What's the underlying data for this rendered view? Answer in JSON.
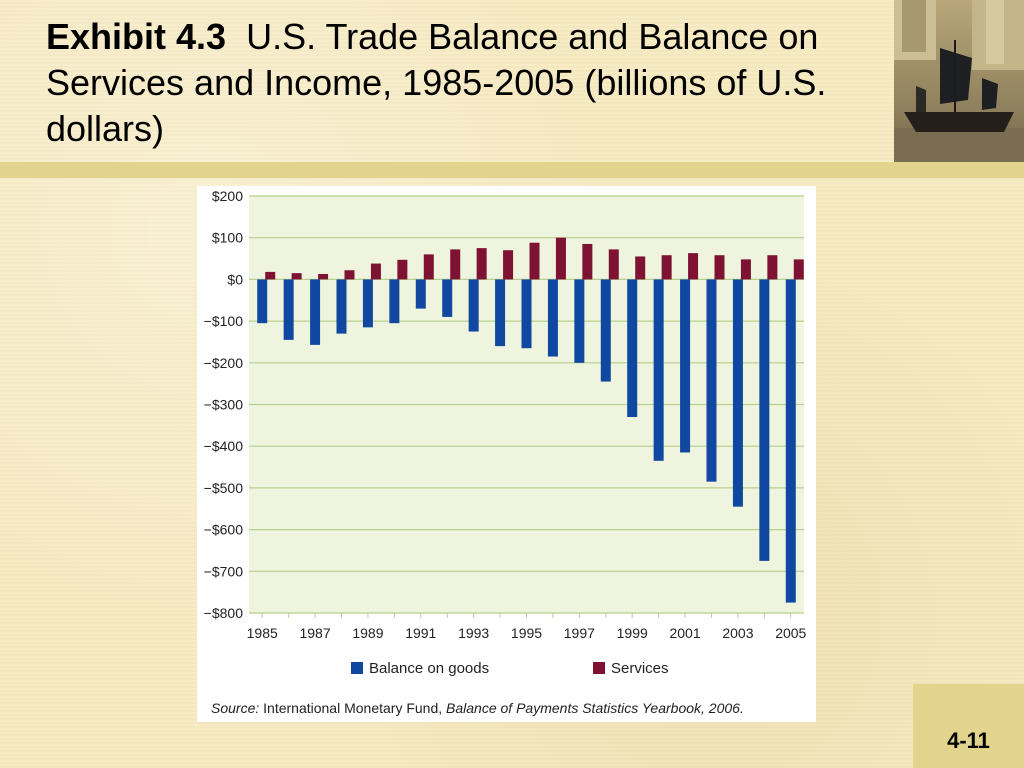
{
  "slide": {
    "title_bold": "Exhibit 4.3",
    "title_rest": "U.S. Trade Balance and Balance on Services and Income, 1985-2005 (billions of U.S. dollars)",
    "page_number": "4-11",
    "source_label": "Source:",
    "source_text": "International Monetary Fund, ",
    "source_italic": "Balance of Payments Statistics Yearbook, 2006."
  },
  "colors": {
    "goods": "#1047a0",
    "services": "#7d1232",
    "plot_bg": "#eef4dd",
    "grid": "#b9cf8f"
  },
  "chart_data": {
    "type": "bar",
    "title": "",
    "xlabel": "",
    "ylabel": "",
    "ylim": [
      -800,
      200
    ],
    "y_ticks": [
      200,
      100,
      0,
      -100,
      -200,
      -300,
      -400,
      -500,
      -600,
      -700,
      -800
    ],
    "y_tick_labels": [
      "$200",
      "$100",
      "$0",
      "−$100",
      "−$200",
      "−$300",
      "−$400",
      "−$500",
      "−$600",
      "−$700",
      "−$800"
    ],
    "categories": [
      "1985",
      "1986",
      "1987",
      "1988",
      "1989",
      "1990",
      "1991",
      "1992",
      "1993",
      "1994",
      "1995",
      "1996",
      "1997",
      "1998",
      "1999",
      "2000",
      "2001",
      "2002",
      "2003",
      "2004",
      "2005"
    ],
    "x_tick_labels": [
      "1985",
      "1987",
      "1989",
      "1991",
      "1993",
      "1995",
      "1997",
      "1999",
      "2001",
      "2003",
      "2005"
    ],
    "legend_position": "bottom",
    "series": [
      {
        "name": "Balance on goods",
        "values": [
          -105,
          -145,
          -157,
          -130,
          -115,
          -105,
          -70,
          -90,
          -125,
          -160,
          -165,
          -185,
          -200,
          -245,
          -330,
          -435,
          -415,
          -485,
          -545,
          -675,
          -775
        ]
      },
      {
        "name": "Services",
        "values": [
          18,
          15,
          13,
          22,
          38,
          47,
          60,
          72,
          75,
          70,
          88,
          100,
          85,
          72,
          55,
          58,
          63,
          58,
          48,
          58,
          48
        ]
      }
    ]
  }
}
